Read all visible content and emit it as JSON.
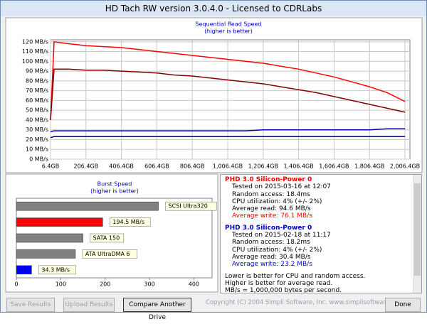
{
  "window": {
    "title": "HD Tach RW version 3.0.4.0 - Licensed to CDRLabs"
  },
  "chart_data": [
    {
      "type": "line",
      "title": "Sequential Read Speed",
      "subtitle": "(higher is better)",
      "x": [
        6.4,
        26.4,
        106.4,
        206.4,
        306.4,
        406.4,
        506.4,
        606.4,
        706.4,
        806.4,
        906.4,
        1006.4,
        1106.4,
        1206.4,
        1306.4,
        1406.4,
        1506.4,
        1606.4,
        1706.4,
        1806.4,
        1906.4,
        2006.4
      ],
      "series": [
        {
          "color": "#ff0000",
          "values": [
            40,
            120,
            118,
            116,
            115,
            114,
            112,
            110,
            108,
            106,
            104,
            102,
            100,
            98,
            95,
            92,
            88,
            84,
            79,
            74,
            68,
            59
          ]
        },
        {
          "color": "#800000",
          "values": [
            40,
            92,
            92,
            91,
            91,
            90,
            89,
            88,
            86,
            85,
            83,
            81,
            79,
            77,
            74,
            71,
            68,
            64,
            60,
            56,
            52,
            48
          ]
        },
        {
          "color": "#0000cc",
          "values": [
            28,
            29,
            29,
            29,
            29,
            29,
            29,
            29,
            29,
            29,
            29,
            29,
            29,
            30,
            30,
            30,
            30,
            30,
            30,
            30,
            31,
            31
          ]
        },
        {
          "color": "#000080",
          "values": [
            22,
            23,
            23,
            23,
            23,
            23,
            23,
            23,
            23,
            23,
            23,
            23,
            23,
            23,
            23,
            23,
            23,
            23,
            23,
            23,
            23,
            23
          ]
        }
      ],
      "xlim": [
        6.4,
        2034.5
      ],
      "ylim": [
        0,
        122
      ],
      "xticks": [
        {
          "value": 6.4,
          "label": "6.4GB"
        },
        {
          "value": 206.4,
          "label": "206.4GB"
        },
        {
          "value": 406.4,
          "label": "406.4GB"
        },
        {
          "value": 606.4,
          "label": "606.4GB"
        },
        {
          "value": 806.4,
          "label": "806.4GB"
        },
        {
          "value": 1006.4,
          "label": "1,006.4GB"
        },
        {
          "value": 1206.4,
          "label": "1,206.4GB"
        },
        {
          "value": 1406.4,
          "label": "1,406.4GB"
        },
        {
          "value": 1606.4,
          "label": "1,606.4GB"
        },
        {
          "value": 1806.4,
          "label": "1,806.4GB"
        },
        {
          "value": 2006.4,
          "label": "2,006.4GB"
        }
      ],
      "yticks": [
        {
          "value": 0,
          "label": "0 MB/s"
        },
        {
          "value": 10,
          "label": "10 MB/s"
        },
        {
          "value": 20,
          "label": "20 MB/s"
        },
        {
          "value": 30,
          "label": "30 MB/s"
        },
        {
          "value": 40,
          "label": "40 MB/s"
        },
        {
          "value": 50,
          "label": "50 MB/s"
        },
        {
          "value": 60,
          "label": "60 MB/s"
        },
        {
          "value": 70,
          "label": "70 MB/s"
        },
        {
          "value": 80,
          "label": "80 MB/s"
        },
        {
          "value": 90,
          "label": "90 MB/s"
        },
        {
          "value": 100,
          "label": "100 MB/s"
        },
        {
          "value": 110,
          "label": "110 MB/s"
        },
        {
          "value": 120,
          "label": "120 MB/s"
        }
      ],
      "grid": true
    },
    {
      "type": "bar",
      "orientation": "horizontal",
      "title": "Burst Speed",
      "subtitle": "(higher is better)",
      "categories": [
        "SCSI Ultra320",
        null,
        "SATA 150",
        "ATA UltraDMA 6",
        null
      ],
      "values": [
        320,
        194.5,
        150,
        133,
        34.3
      ],
      "value_labels": [
        null,
        "194.5 MB/s",
        null,
        null,
        "34.3 MB/s"
      ],
      "colors": [
        "#808080",
        "#ff0000",
        "#808080",
        "#808080",
        "#0000ff"
      ],
      "xlim": [
        0,
        441
      ],
      "xticks": [
        0,
        100,
        200,
        300,
        400
      ]
    }
  ],
  "results": [
    {
      "drive": "PHD 3.0 Silicon-Power 0",
      "color": "#ff0000",
      "lines": [
        "Tested on 2015-03-16 at 12:07",
        "Random access: 18.4ms",
        "CPU utilization: 4% (+/- 2%)",
        "Average read: 94.6 MB/s",
        "Average write: 76.1 MB/s"
      ]
    },
    {
      "drive": "PHD 3.0 Silicon-Power 0",
      "color": "#0000cc",
      "lines": [
        "Tested on 2015-02-18 at 11:17",
        "Random access: 18.2ms",
        "CPU utilization: 4% (+/- 2%)",
        "Average read: 30.4 MB/s",
        "Average write: 23.2 MB/s"
      ]
    }
  ],
  "notes": [
    "Lower is better for CPU and random access.",
    "Higher is better for average read.",
    "MB/s = 1,000,000 bytes per second."
  ],
  "buttons": [
    {
      "label": "Save Results",
      "enabled": false
    },
    {
      "label": "Upload Results",
      "enabled": false
    },
    {
      "label": "Compare Another Drive",
      "enabled": true
    },
    {
      "label": "Done",
      "enabled": true
    }
  ],
  "copyright": "Copyright (C) 2004 Simpli Software, Inc. www.simplisoftware.com"
}
